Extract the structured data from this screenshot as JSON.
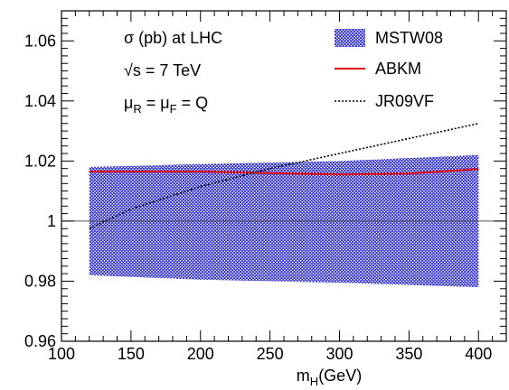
{
  "chart_data": {
    "type": "line",
    "title": "",
    "xlabel": {
      "main": "m",
      "sub": "H",
      "rest": "(GeV)"
    },
    "ylabel": "",
    "xlim": [
      100,
      420
    ],
    "ylim": [
      0.96,
      1.07
    ],
    "xticks": [
      100,
      150,
      200,
      250,
      300,
      350,
      400
    ],
    "xtick_labels": [
      "100",
      "150",
      "200",
      "250",
      "300",
      "350",
      "400"
    ],
    "yticks": [
      0.96,
      0.98,
      1.0,
      1.02,
      1.04,
      1.06
    ],
    "ytick_labels": [
      "0.96",
      "0.98",
      "1",
      "1.02",
      "1.04",
      "1.06"
    ],
    "reference_line": 1.0,
    "annotations": {
      "line1": "σ (pb) at LHC",
      "line2": {
        "root": "√s",
        "rest": " = 7 TeV"
      },
      "line3": {
        "mu": "μ",
        "subR": "R",
        "eq1": " = μ",
        "subF": "F",
        "eq2": " = Q"
      }
    },
    "colors": {
      "band": "#1a1ad0",
      "abkm": "#e00000",
      "jr09vf": "#000000",
      "axis": "#000000"
    },
    "series": [
      {
        "name": "MSTW08",
        "style": "hatched-band",
        "x": [
          120,
          200,
          300,
          400
        ],
        "lower": [
          0.982,
          0.9805,
          0.9795,
          0.978
        ],
        "upper": [
          1.018,
          1.019,
          1.02,
          1.022
        ]
      },
      {
        "name": "ABKM",
        "style": "solid",
        "x": [
          120,
          150,
          200,
          250,
          300,
          350,
          400
        ],
        "y": [
          1.0165,
          1.0165,
          1.0165,
          1.016,
          1.0155,
          1.0158,
          1.0173
        ]
      },
      {
        "name": "JR09VF",
        "style": "dotted",
        "x": [
          120,
          150,
          200,
          250,
          280,
          300,
          350,
          400
        ],
        "y": [
          0.9975,
          1.004,
          1.0115,
          1.0175,
          1.0205,
          1.0225,
          1.0275,
          1.0325
        ]
      }
    ]
  }
}
